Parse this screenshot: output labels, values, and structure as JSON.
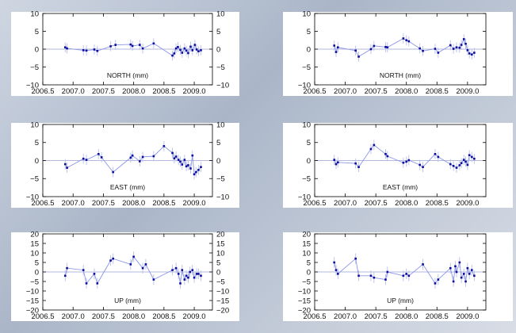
{
  "chart_data": [
    {
      "type": "scatter",
      "panel": "left-north",
      "title": "NORTH (mm)",
      "x": [
        2006.87,
        2006.9,
        2007.17,
        2007.22,
        2007.35,
        2007.4,
        2007.62,
        2007.7,
        2007.95,
        2007.98,
        2008.1,
        2008.15,
        2008.33,
        2008.64,
        2008.67,
        2008.7,
        2008.73,
        2008.77,
        2008.8,
        2008.84,
        2008.87,
        2008.9,
        2008.94,
        2008.97,
        2009.01,
        2009.04,
        2009.07,
        2009.11
      ],
      "y": [
        0.5,
        0.2,
        -0.3,
        -0.4,
        -0.1,
        -0.5,
        0.8,
        1.2,
        1.3,
        0.9,
        1.2,
        0.2,
        1.6,
        -1.8,
        -1.2,
        0.2,
        0.6,
        -0.2,
        -1.0,
        0.2,
        -0.4,
        -1.1,
        0.7,
        -0.3,
        1.2,
        -0.1,
        -0.6,
        -0.3
      ],
      "xlim": [
        2006.5,
        2009.3
      ],
      "ylim": [
        -10,
        10
      ],
      "xticks": [
        "2006.5",
        "2007.0",
        "2007.5",
        "2008.0",
        "2008.5",
        "2009.0"
      ],
      "yticks": [
        "10",
        "5",
        "0",
        "−5",
        "−10"
      ],
      "ylabels_right": true,
      "zero_line": true
    },
    {
      "type": "scatter",
      "panel": "left-east",
      "title": "EAST (mm)",
      "x": [
        2006.87,
        2006.9,
        2007.17,
        2007.22,
        2007.42,
        2007.47,
        2007.66,
        2007.95,
        2007.98,
        2008.1,
        2008.15,
        2008.33,
        2008.5,
        2008.64,
        2008.67,
        2008.7,
        2008.74,
        2008.77,
        2008.8,
        2008.84,
        2008.87,
        2008.9,
        2008.94,
        2008.97,
        2009.0,
        2009.03,
        2009.07,
        2009.11
      ],
      "y": [
        -1.0,
        -2.0,
        0.5,
        0.2,
        1.8,
        0.9,
        -3.2,
        0.8,
        1.4,
        -0.2,
        1.0,
        1.2,
        4.0,
        2.1,
        0.6,
        1.1,
        0.2,
        -0.3,
        -1.1,
        0.2,
        -1.6,
        -1.3,
        -2.2,
        1.4,
        -3.8,
        -3.2,
        -2.6,
        -1.8
      ],
      "xlim": [
        2006.5,
        2009.3
      ],
      "ylim": [
        -10,
        10
      ],
      "xticks": [
        "2006.5",
        "2007.0",
        "2007.5",
        "2008.0",
        "2008.5",
        "2009.0"
      ],
      "yticks": [
        "10",
        "5",
        "0",
        "−5",
        "−10"
      ],
      "ylabels_right": true,
      "zero_line": true
    },
    {
      "type": "scatter",
      "panel": "left-up",
      "title": "UP (mm)",
      "x": [
        2006.87,
        2006.9,
        2007.17,
        2007.22,
        2007.35,
        2007.4,
        2007.62,
        2007.66,
        2007.95,
        2008.0,
        2008.15,
        2008.2,
        2008.33,
        2008.64,
        2008.7,
        2008.74,
        2008.77,
        2008.8,
        2008.84,
        2008.87,
        2008.9,
        2008.93,
        2008.97,
        2009.0,
        2009.04,
        2009.07,
        2009.11
      ],
      "y": [
        -2,
        2,
        1,
        -6,
        -1,
        -6,
        6,
        7,
        4,
        8,
        2,
        4,
        -4,
        1,
        2,
        -1,
        -6,
        1,
        -4,
        -2,
        -3,
        0,
        1,
        -3,
        -1,
        -1,
        -2
      ],
      "xlim": [
        2006.5,
        2009.3
      ],
      "ylim": [
        -20,
        20
      ],
      "xticks": [
        "2006.5",
        "2007.0",
        "2007.5",
        "2008.0",
        "2008.5",
        "2009.0"
      ],
      "yticks": [
        "20",
        "15",
        "10",
        "5",
        "0",
        "−5",
        "−10",
        "−15",
        "−20"
      ],
      "ylabels_right": true,
      "zero_line": true
    },
    {
      "type": "scatter",
      "panel": "right-north",
      "title": "NORTH (mm)",
      "x": [
        2006.82,
        2006.85,
        2006.88,
        2007.17,
        2007.22,
        2007.42,
        2007.47,
        2007.66,
        2007.69,
        2007.95,
        2008.0,
        2008.04,
        2008.22,
        2008.27,
        2008.47,
        2008.52,
        2008.72,
        2008.77,
        2008.82,
        2008.87,
        2008.9,
        2008.94,
        2008.97,
        2009.0,
        2009.03,
        2009.07,
        2009.11
      ],
      "y": [
        1.0,
        -0.8,
        0.5,
        -0.4,
        -2.1,
        0.0,
        0.9,
        0.6,
        0.5,
        3.0,
        2.5,
        2.2,
        0.2,
        -0.5,
        0.1,
        -1.0,
        1.1,
        0.1,
        0.5,
        0.4,
        1.2,
        2.8,
        1.5,
        -0.3,
        -1.2,
        -1.5,
        -1.0
      ],
      "xlim": [
        2006.5,
        2009.3
      ],
      "ylim": [
        -10,
        10
      ],
      "xticks": [
        "2006.5",
        "2007.0",
        "2007.5",
        "2008.0",
        "2008.5",
        "2009.0"
      ],
      "yticks": [
        "10",
        "5",
        "0",
        "−5",
        "−10"
      ],
      "ylabels_right": false,
      "zero_line": true
    },
    {
      "type": "scatter",
      "panel": "right-east",
      "title": "EAST (mm)",
      "x": [
        2006.82,
        2006.85,
        2006.88,
        2007.17,
        2007.22,
        2007.42,
        2007.47,
        2007.66,
        2007.69,
        2007.95,
        2008.0,
        2008.04,
        2008.22,
        2008.27,
        2008.47,
        2008.52,
        2008.72,
        2008.77,
        2008.82,
        2008.87,
        2008.9,
        2008.94,
        2008.97,
        2009.0,
        2009.03,
        2009.07,
        2009.11
      ],
      "y": [
        0.2,
        -1.0,
        -0.5,
        -0.8,
        -1.8,
        3.2,
        4.3,
        1.8,
        1.2,
        -0.6,
        -0.3,
        0.1,
        -1.2,
        -1.8,
        1.8,
        1.0,
        -1.0,
        -1.5,
        -2.0,
        -1.3,
        -0.7,
        0.2,
        -0.3,
        -1.2,
        1.5,
        1.0,
        0.5
      ],
      "xlim": [
        2006.5,
        2009.3
      ],
      "ylim": [
        -10,
        10
      ],
      "xticks": [
        "2006.5",
        "2007.0",
        "2007.5",
        "2008.0",
        "2008.5",
        "2009.0"
      ],
      "yticks": [
        "10",
        "5",
        "0",
        "−5",
        "−10"
      ],
      "ylabels_right": false,
      "zero_line": true
    },
    {
      "type": "scatter",
      "panel": "right-up",
      "title": "UP (mm)",
      "x": [
        2006.82,
        2006.85,
        2006.88,
        2007.17,
        2007.22,
        2007.42,
        2007.47,
        2007.66,
        2007.69,
        2007.95,
        2008.0,
        2008.04,
        2008.27,
        2008.47,
        2008.52,
        2008.72,
        2008.77,
        2008.8,
        2008.82,
        2008.87,
        2008.9,
        2008.94,
        2008.97,
        2009.0,
        2009.03,
        2009.07,
        2009.11
      ],
      "y": [
        5,
        1,
        -1,
        7,
        -2,
        -2,
        -3,
        -4,
        0,
        -2,
        -1,
        -2,
        4,
        -6,
        -4,
        2,
        -5,
        3,
        0,
        5,
        -3,
        -1,
        -5,
        2,
        -1,
        1,
        -2
      ],
      "xlim": [
        2006.5,
        2009.3
      ],
      "ylim": [
        -20,
        20
      ],
      "xticks": [
        "2006.5",
        "2007.0",
        "2007.5",
        "2008.0",
        "2008.5",
        "2009.0"
      ],
      "yticks": [
        "20",
        "15",
        "10",
        "5",
        "0",
        "−5",
        "−10",
        "−15",
        "−20"
      ],
      "ylabels_right": false,
      "zero_line": true
    }
  ],
  "colors": {
    "marker": "#0c0c9e",
    "line": "#8b96e8",
    "error_bar": "#b7bfe8",
    "zero_line": "#9aa2d0",
    "panel": "#ffffff",
    "axis": "#000000"
  }
}
